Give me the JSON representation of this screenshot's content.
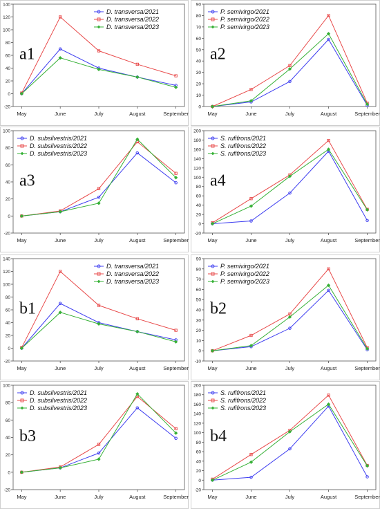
{
  "months": [
    "May",
    "June",
    "July",
    "August",
    "September"
  ],
  "colors": {
    "y2021": "#3d3df0",
    "y2022": "#e84a4a",
    "y2023": "#36b036"
  },
  "chart_data": [
    {
      "panel": "a1",
      "type": "line",
      "x": [
        "May",
        "June",
        "July",
        "August",
        "September"
      ],
      "ylim": [
        -20,
        140
      ],
      "yticks": [
        -20,
        0,
        20,
        40,
        60,
        80,
        100,
        120,
        140
      ],
      "legend": "top-right",
      "series": [
        {
          "name": "D. transversa/2021",
          "color": "#3d3df0",
          "marker": "circle",
          "values": [
            0,
            70,
            40,
            26,
            13
          ]
        },
        {
          "name": "D. transversa/2022",
          "color": "#e84a4a",
          "marker": "square",
          "values": [
            1,
            120,
            67,
            46,
            28
          ]
        },
        {
          "name": "D. transversa/2023",
          "color": "#36b036",
          "marker": "diamond",
          "values": [
            0,
            56,
            38,
            26,
            10
          ]
        }
      ]
    },
    {
      "panel": "a2",
      "type": "line",
      "x": [
        "May",
        "June",
        "July",
        "August",
        "September"
      ],
      "ylim": [
        0,
        90
      ],
      "yticks": [
        0,
        10,
        20,
        30,
        40,
        50,
        60,
        70,
        80,
        90
      ],
      "legend": "top-left",
      "series": [
        {
          "name": "P. semivirgo/2021",
          "color": "#3d3df0",
          "marker": "circle",
          "values": [
            0,
            4,
            22,
            59,
            1
          ]
        },
        {
          "name": "P. semivirgo/2022",
          "color": "#e84a4a",
          "marker": "square",
          "values": [
            0,
            15,
            36,
            80,
            3
          ]
        },
        {
          "name": "P. semivirgo/2023",
          "color": "#36b036",
          "marker": "diamond",
          "values": [
            0,
            5,
            33,
            64,
            2
          ]
        }
      ]
    },
    {
      "panel": "a3",
      "type": "line",
      "x": [
        "May",
        "June",
        "July",
        "August",
        "September"
      ],
      "ylim": [
        -20,
        100
      ],
      "yticks": [
        -20,
        0,
        20,
        40,
        60,
        80,
        100
      ],
      "legend": "top-left",
      "series": [
        {
          "name": "D. subsilvestris/2021",
          "color": "#3d3df0",
          "marker": "circle",
          "values": [
            0,
            5,
            22,
            74,
            39
          ]
        },
        {
          "name": "D. subsilvestris/2022",
          "color": "#e84a4a",
          "marker": "square",
          "values": [
            0,
            6,
            32,
            87,
            50
          ]
        },
        {
          "name": "D. subsilvestris/2023",
          "color": "#36b036",
          "marker": "diamond",
          "values": [
            0,
            5,
            15,
            90,
            45
          ]
        }
      ]
    },
    {
      "panel": "a4",
      "type": "line",
      "x": [
        "May",
        "June",
        "July",
        "August",
        "September"
      ],
      "ylim": [
        -20,
        200
      ],
      "yticks": [
        -20,
        0,
        20,
        40,
        60,
        80,
        100,
        120,
        140,
        160,
        180,
        200
      ],
      "legend": "top-left",
      "series": [
        {
          "name": "S. rufifrons/2021",
          "color": "#3d3df0",
          "marker": "circle",
          "values": [
            0,
            6,
            66,
            156,
            7
          ]
        },
        {
          "name": "S. rufifrons/2022",
          "color": "#e84a4a",
          "marker": "square",
          "values": [
            2,
            54,
            105,
            179,
            31
          ]
        },
        {
          "name": "S. rufifrons/2023",
          "color": "#36b036",
          "marker": "diamond",
          "values": [
            0,
            38,
            102,
            160,
            30
          ]
        }
      ]
    },
    {
      "panel": "b1",
      "type": "line",
      "x": [
        "May",
        "June",
        "July",
        "August",
        "September"
      ],
      "ylim": [
        -20,
        140
      ],
      "yticks": [
        -20,
        0,
        20,
        40,
        60,
        80,
        100,
        120,
        140
      ],
      "legend": "top-right",
      "series": [
        {
          "name": "D. transversa/2021",
          "color": "#3d3df0",
          "marker": "circle",
          "values": [
            0,
            70,
            40,
            26,
            13
          ]
        },
        {
          "name": "D. transversa/2022",
          "color": "#e84a4a",
          "marker": "square",
          "values": [
            1,
            120,
            67,
            46,
            28
          ]
        },
        {
          "name": "D. transversa/2023",
          "color": "#36b036",
          "marker": "diamond",
          "values": [
            0,
            56,
            38,
            26,
            10
          ]
        }
      ]
    },
    {
      "panel": "b2",
      "type": "line",
      "x": [
        "May",
        "June",
        "July",
        "August",
        "September"
      ],
      "ylim": [
        -10,
        90
      ],
      "yticks": [
        -10,
        0,
        10,
        20,
        30,
        40,
        50,
        60,
        70,
        80,
        90
      ],
      "legend": "top-left",
      "series": [
        {
          "name": "P. semivirgo/2021",
          "color": "#3d3df0",
          "marker": "circle",
          "values": [
            0,
            4,
            22,
            59,
            1
          ]
        },
        {
          "name": "P. semivirgo/2022",
          "color": "#e84a4a",
          "marker": "square",
          "values": [
            0,
            15,
            36,
            80,
            3
          ]
        },
        {
          "name": "P. semivirgo/2023",
          "color": "#36b036",
          "marker": "diamond",
          "values": [
            0,
            5,
            33,
            64,
            2
          ]
        }
      ]
    },
    {
      "panel": "b3",
      "type": "line",
      "x": [
        "May",
        "June",
        "July",
        "August",
        "September"
      ],
      "ylim": [
        -20,
        100
      ],
      "yticks": [
        -20,
        0,
        20,
        40,
        60,
        80,
        100
      ],
      "legend": "top-left",
      "series": [
        {
          "name": "D. subsilvestris/2021",
          "color": "#3d3df0",
          "marker": "circle",
          "values": [
            0,
            5,
            22,
            74,
            39
          ]
        },
        {
          "name": "D. subsilvestris/2022",
          "color": "#e84a4a",
          "marker": "square",
          "values": [
            0,
            6,
            32,
            87,
            50
          ]
        },
        {
          "name": "D. subsilvestris/2023",
          "color": "#36b036",
          "marker": "diamond",
          "values": [
            0,
            5,
            15,
            90,
            45
          ]
        }
      ]
    },
    {
      "panel": "b4",
      "type": "line",
      "x": [
        "May",
        "June",
        "July",
        "August",
        "September"
      ],
      "ylim": [
        -20,
        200
      ],
      "yticks": [
        -20,
        0,
        20,
        40,
        60,
        80,
        100,
        120,
        140,
        160,
        180,
        200
      ],
      "legend": "top-left",
      "series": [
        {
          "name": "S. rufifrons/2021",
          "color": "#3d3df0",
          "marker": "circle",
          "values": [
            0,
            6,
            66,
            156,
            7
          ]
        },
        {
          "name": "S. rufifrons/2022",
          "color": "#e84a4a",
          "marker": "square",
          "values": [
            2,
            54,
            105,
            179,
            31
          ]
        },
        {
          "name": "S. rufifrons/2023",
          "color": "#36b036",
          "marker": "diamond",
          "values": [
            0,
            38,
            102,
            160,
            30
          ]
        }
      ]
    }
  ]
}
